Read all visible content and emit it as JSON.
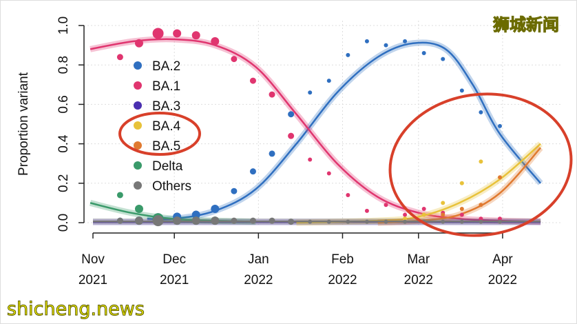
{
  "chart_data": {
    "type": "scatter",
    "ylabel": "Proportion variant",
    "xlabel": "",
    "ylim": [
      0,
      1.0
    ],
    "yticks": [
      "0.0",
      "0.2",
      "0.4",
      "0.6",
      "0.8",
      "1.0"
    ],
    "xticks": [
      {
        "date": "2021-11-01",
        "line1": "Nov",
        "line2": "2021"
      },
      {
        "date": "2021-12-01",
        "line1": "Dec",
        "line2": "2021"
      },
      {
        "date": "2022-01-01",
        "line1": "Jan",
        "line2": "2022"
      },
      {
        "date": "2022-02-01",
        "line1": "Feb",
        "line2": "2022"
      },
      {
        "date": "2022-03-01",
        "line1": "Mar",
        "line2": "2022"
      },
      {
        "date": "2022-04-01",
        "line1": "Apr",
        "line2": "2022"
      }
    ],
    "grid": true,
    "legend_position": "left",
    "x_dates": [
      "2021-11-11",
      "2021-11-18",
      "2021-11-25",
      "2021-12-02",
      "2021-12-09",
      "2021-12-16",
      "2021-12-23",
      "2021-12-30",
      "2022-01-06",
      "2022-01-13",
      "2022-01-20",
      "2022-01-27",
      "2022-02-03",
      "2022-02-10",
      "2022-02-17",
      "2022-02-24",
      "2022-03-03",
      "2022-03-10",
      "2022-03-17",
      "2022-03-24",
      "2022-03-31"
    ],
    "series": [
      {
        "name": "BA.2",
        "color": "#2f6fc0",
        "values": [
          0.01,
          0.01,
          0.02,
          0.03,
          0.04,
          0.07,
          0.16,
          0.26,
          0.35,
          0.55,
          0.66,
          0.72,
          0.85,
          0.92,
          0.9,
          0.92,
          0.86,
          0.83,
          0.67,
          0.56,
          0.49
        ],
        "fit": [
          [
            "2021-11-21",
            0.02
          ],
          [
            "2021-12-01",
            0.02
          ],
          [
            "2021-12-16",
            0.06
          ],
          [
            "2021-12-31",
            0.17
          ],
          [
            "2022-01-15",
            0.4
          ],
          [
            "2022-01-30",
            0.66
          ],
          [
            "2022-02-14",
            0.84
          ],
          [
            "2022-02-27",
            0.91
          ],
          [
            "2022-03-11",
            0.88
          ],
          [
            "2022-03-21",
            0.7
          ],
          [
            "2022-03-31",
            0.45
          ],
          [
            "2022-04-15",
            0.2
          ]
        ]
      },
      {
        "name": "BA.1",
        "color": "#e0356f",
        "values": [
          0.84,
          0.91,
          0.96,
          0.96,
          0.95,
          0.92,
          0.83,
          0.72,
          0.65,
          0.44,
          0.32,
          0.25,
          0.14,
          0.06,
          0.09,
          0.04,
          0.07,
          0.05,
          0.04,
          0.02,
          0.02
        ],
        "fit": [
          [
            "2021-10-31",
            0.88
          ],
          [
            "2021-11-16",
            0.92
          ],
          [
            "2021-12-01",
            0.93
          ],
          [
            "2021-12-16",
            0.9
          ],
          [
            "2021-12-31",
            0.79
          ],
          [
            "2022-01-15",
            0.55
          ],
          [
            "2022-01-30",
            0.3
          ],
          [
            "2022-02-14",
            0.13
          ],
          [
            "2022-03-01",
            0.05
          ],
          [
            "2022-03-16",
            0.02
          ],
          [
            "2022-03-31",
            0.01
          ],
          [
            "2022-04-15",
            0.005
          ]
        ]
      },
      {
        "name": "BA.3",
        "color": "#4a2fb0",
        "values": [
          0,
          0,
          0,
          0,
          0,
          0,
          0,
          0,
          0,
          0,
          0,
          0,
          0,
          0,
          0,
          0,
          0,
          0,
          0,
          0,
          0
        ],
        "fit": [
          [
            "2021-11-01",
            0.003
          ],
          [
            "2022-04-15",
            0.003
          ]
        ]
      },
      {
        "name": "BA.4",
        "color": "#e8c23a",
        "values": [
          0,
          0,
          0,
          0,
          0,
          0,
          0,
          0,
          0,
          0,
          0,
          0,
          0,
          0,
          0,
          0.02,
          0.04,
          0.1,
          0.2,
          0.31,
          0.0
        ],
        "fit": [
          [
            "2022-01-15",
            0.0
          ],
          [
            "2022-02-14",
            0.01
          ],
          [
            "2022-03-01",
            0.03
          ],
          [
            "2022-03-16",
            0.1
          ],
          [
            "2022-03-31",
            0.22
          ],
          [
            "2022-04-15",
            0.4
          ]
        ]
      },
      {
        "name": "BA.5",
        "color": "#e07a30",
        "values": [
          0,
          0,
          0,
          0,
          0,
          0,
          0,
          0,
          0,
          0,
          0,
          0,
          0,
          0,
          0,
          0,
          0,
          0.04,
          0.07,
          0.09,
          0.23
        ],
        "fit": [
          [
            "2022-02-14",
            0.0
          ],
          [
            "2022-03-01",
            0.01
          ],
          [
            "2022-03-16",
            0.04
          ],
          [
            "2022-03-31",
            0.15
          ],
          [
            "2022-04-15",
            0.38
          ]
        ]
      },
      {
        "name": "Delta",
        "color": "#3a9a6a",
        "values": [
          0.14,
          0.07,
          0.02,
          0.01,
          0.01,
          0.01,
          0,
          0,
          0,
          0,
          0,
          0,
          0,
          0,
          0,
          0,
          0,
          0,
          0,
          0,
          0
        ],
        "fit": [
          [
            "2021-10-31",
            0.1
          ],
          [
            "2021-11-15",
            0.05
          ],
          [
            "2021-11-30",
            0.02
          ],
          [
            "2021-12-15",
            0.01
          ],
          [
            "2021-12-31",
            0.005
          ]
        ]
      },
      {
        "name": "Others",
        "color": "#777777",
        "values": [
          0.01,
          0.01,
          0.01,
          0.01,
          0.01,
          0.01,
          0.01,
          0.01,
          0.01,
          0.005,
          0.005,
          0.005,
          0.005,
          0.005,
          0.005,
          0.005,
          0.005,
          0.005,
          0.005,
          0.005,
          0.005
        ],
        "fit": [
          [
            "2021-11-01",
            0.006
          ],
          [
            "2022-04-15",
            0.006
          ]
        ]
      }
    ],
    "annotations": [
      {
        "type": "ellipse",
        "color": "#d8402a",
        "target": "BA.4, BA.5 legend entries"
      },
      {
        "type": "ellipse",
        "color": "#d8402a",
        "target": "BA.4/BA.5 growth, March–April 2022"
      }
    ]
  },
  "watermarks": {
    "top_right": "狮城新闻",
    "bottom_left": "shicheng.news"
  }
}
